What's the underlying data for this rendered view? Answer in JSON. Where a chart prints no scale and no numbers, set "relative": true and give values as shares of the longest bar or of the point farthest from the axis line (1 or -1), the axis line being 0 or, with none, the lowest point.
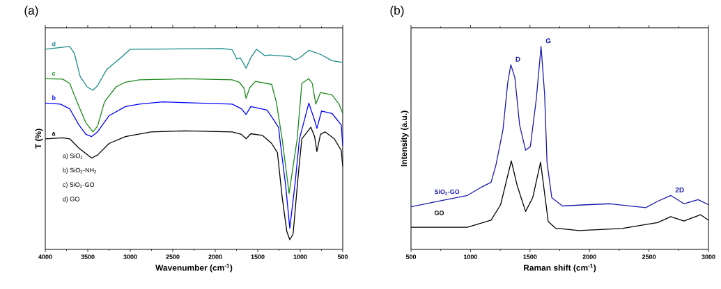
{
  "chart_data": [
    {
      "type": "line",
      "title": "(a)",
      "xlabel": "Wavenumber (cm$^{-1}$)",
      "ylabel": "T (%)",
      "relative": true,
      "xlim": [
        4000,
        500
      ],
      "xticks": [
        4000,
        3500,
        3000,
        2500,
        2000,
        1500,
        1000,
        500
      ],
      "annotations": [
        "a) SiO$_{2}$",
        "b) SiO$_{2}$-NH$_{2}$",
        "c) SiO$_{2}$-GO",
        "d) GO"
      ],
      "series": [
        {
          "name": "d",
          "color": "#1a8a8a",
          "x": [
            4000,
            3822,
            3713,
            3658,
            3590,
            3508,
            3440,
            3385,
            3276,
            3112,
            3003,
            2620,
            1910,
            1801,
            1746,
            1705,
            1637,
            1582,
            1514,
            1418,
            1364,
            1118,
            1063,
            1008,
            899,
            762,
            626,
            500
          ],
          "values": [
            0.986,
            0.995,
            1.0,
            0.967,
            0.853,
            0.801,
            0.784,
            0.807,
            0.887,
            0.944,
            0.986,
            0.987,
            0.99,
            0.984,
            0.938,
            0.944,
            0.893,
            0.944,
            0.986,
            0.955,
            0.958,
            0.95,
            0.933,
            0.944,
            0.981,
            0.961,
            0.93,
            0.921
          ]
        },
        {
          "name": "c",
          "color": "#1a8a1a",
          "x": [
            4000,
            3795,
            3713,
            3604,
            3522,
            3440,
            3385,
            3303,
            3167,
            3057,
            2893,
            2347,
            1801,
            1719,
            1664,
            1637,
            1596,
            1528,
            1336,
            1282,
            1213,
            1131,
            1036,
            981,
            899,
            858,
            817,
            762,
            626,
            544,
            500
          ],
          "values": [
            0.841,
            0.839,
            0.818,
            0.704,
            0.624,
            0.579,
            0.607,
            0.727,
            0.801,
            0.824,
            0.836,
            0.841,
            0.836,
            0.824,
            0.796,
            0.744,
            0.796,
            0.828,
            0.813,
            0.727,
            0.545,
            0.276,
            0.545,
            0.818,
            0.841,
            0.818,
            0.716,
            0.773,
            0.761,
            0.716,
            0.67
          ]
        },
        {
          "name": "b",
          "color": "#0000ff",
          "x": [
            4000,
            3822,
            3713,
            3604,
            3522,
            3454,
            3385,
            3249,
            3057,
            2893,
            2620,
            1801,
            1692,
            1637,
            1582,
            1391,
            1309,
            1254,
            1240,
            1172,
            1123,
            1063,
            1009,
            899,
            831,
            804,
            749,
            626,
            517,
            500
          ],
          "values": [
            0.721,
            0.716,
            0.693,
            0.613,
            0.567,
            0.556,
            0.579,
            0.659,
            0.704,
            0.716,
            0.727,
            0.716,
            0.693,
            0.665,
            0.704,
            0.687,
            0.636,
            0.6,
            0.545,
            0.316,
            0.105,
            0.316,
            0.545,
            0.721,
            0.636,
            0.596,
            0.682,
            0.67,
            0.613,
            0.51
          ]
        },
        {
          "name": "a",
          "color": "#000000",
          "x": [
            4000,
            3795,
            3713,
            3604,
            3454,
            3385,
            3249,
            3057,
            2757,
            2347,
            1801,
            1692,
            1637,
            1582,
            1446,
            1336,
            1268,
            1213,
            1158,
            1123,
            1084,
            1022,
            981,
            875,
            831,
            804,
            762,
            708,
            599,
            517,
            500
          ],
          "values": [
            0.545,
            0.55,
            0.545,
            0.499,
            0.45,
            0.465,
            0.522,
            0.556,
            0.579,
            0.584,
            0.579,
            0.567,
            0.545,
            0.57,
            0.562,
            0.522,
            0.476,
            0.259,
            0.088,
            0.048,
            0.076,
            0.373,
            0.545,
            0.602,
            0.556,
            0.482,
            0.567,
            0.579,
            0.545,
            0.487,
            0.408
          ]
        }
      ]
    },
    {
      "type": "line",
      "title": "(b)",
      "xlabel": "Raman shift (cm$^{-1}$)",
      "ylabel": "Intensity (a.u.)",
      "relative": true,
      "xlim": [
        500,
        3000
      ],
      "xticks": [
        500,
        1000,
        1500,
        2000,
        2500,
        3000
      ],
      "annotations": [
        {
          "text": "D",
          "x": 1339,
          "y": 0.91
        },
        {
          "text": "G",
          "x": 1593,
          "y": 1.0
        },
        {
          "text": "2D",
          "x": 2683,
          "y": 0.266
        }
      ],
      "series": [
        {
          "name": "SiO$_{2}$-GO",
          "color": "#1a1aaa",
          "x": [
            500,
            774,
            974,
            1093,
            1173,
            1213,
            1273,
            1313,
            1339,
            1373,
            1413,
            1463,
            1503,
            1553,
            1593,
            1623,
            1643,
            1683,
            1773,
            1973,
            2173,
            2473,
            2573,
            2683,
            2793,
            2913,
            3000
          ],
          "values": [
            0.21,
            0.243,
            0.266,
            0.307,
            0.331,
            0.414,
            0.589,
            0.822,
            0.91,
            0.846,
            0.612,
            0.489,
            0.507,
            0.741,
            1.0,
            0.764,
            0.43,
            0.255,
            0.214,
            0.22,
            0.225,
            0.206,
            0.237,
            0.266,
            0.225,
            0.245,
            0.22
          ]
        },
        {
          "name": "GO",
          "color": "#000000",
          "x": [
            500,
            974,
            1173,
            1253,
            1343,
            1393,
            1463,
            1523,
            1589,
            1653,
            1713,
            1913,
            2273,
            2573,
            2683,
            2793,
            2933,
            3000
          ],
          "values": [
            0.109,
            0.109,
            0.144,
            0.22,
            0.436,
            0.313,
            0.187,
            0.255,
            0.43,
            0.138,
            0.105,
            0.093,
            0.103,
            0.132,
            0.161,
            0.14,
            0.171,
            0.144
          ]
        }
      ]
    }
  ]
}
